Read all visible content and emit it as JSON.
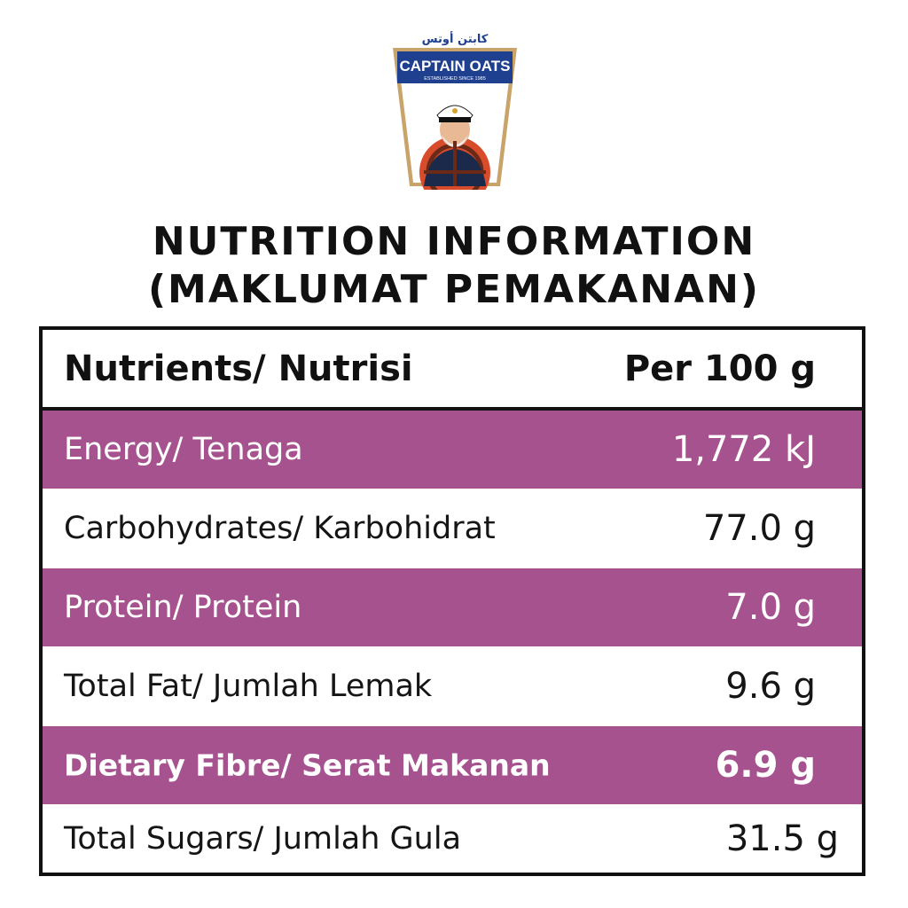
{
  "brand": {
    "arabic": "كابتن أوتس",
    "name": "CAPTAIN OATS",
    "tagline": "ESTABLISHED SINCE 1985"
  },
  "title": {
    "line1": "NUTRITION INFORMATION",
    "line2": "(MAKLUMAT PEMAKANAN)"
  },
  "table": {
    "header": {
      "nutrient": "Nutrients/ Nutrisi",
      "per": "Per 100 g"
    },
    "rows": [
      {
        "nutrient": "Energy/ Tenaga",
        "value": "1,772 kJ"
      },
      {
        "nutrient": "Carbohydrates/ Karbohidrat",
        "value": "77.0 g"
      },
      {
        "nutrient": "Protein/ Protein",
        "value": "7.0 g"
      },
      {
        "nutrient": "Total Fat/ Jumlah Lemak",
        "value": "9.6 g"
      },
      {
        "nutrient": "Dietary Fibre/ Serat Makanan",
        "value": "6.9 g"
      },
      {
        "nutrient": "Total Sugars/ Jumlah Gula",
        "value": "31.5 g"
      }
    ]
  },
  "colors": {
    "row_highlight": "#a6528f",
    "logo_blue": "#1f3f8f",
    "logo_gold": "#c9a46a",
    "text": "#111111"
  }
}
